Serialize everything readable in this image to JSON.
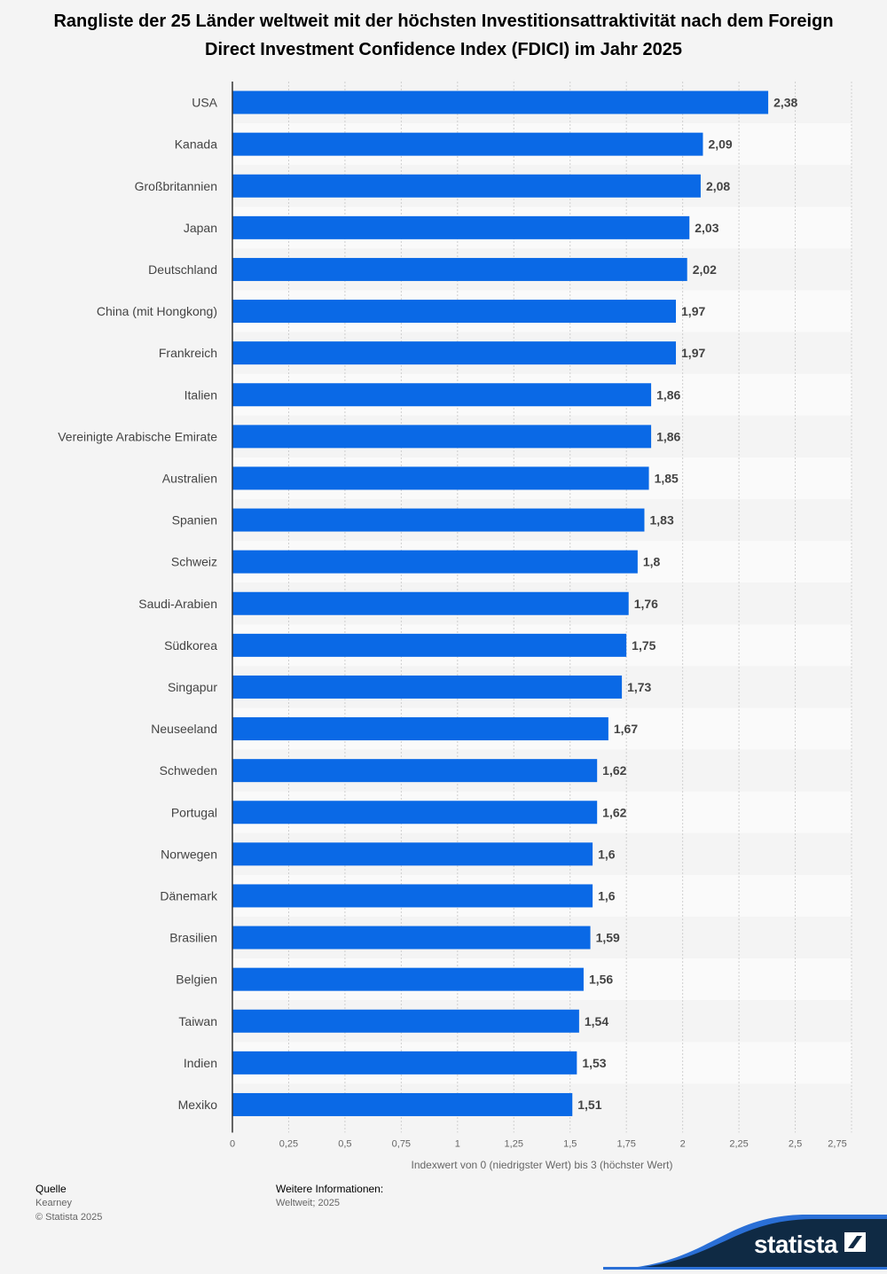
{
  "chart_data": {
    "type": "bar",
    "orientation": "horizontal",
    "title": "Rangliste der 25 Länder weltweit mit der höchsten Investitionsattraktivität nach dem Foreign Direct Investment Confidence Index (FDICI) im Jahr 2025",
    "categories": [
      "USA",
      "Kanada",
      "Großbritannien",
      "Japan",
      "Deutschland",
      "China (mit Hongkong)",
      "Frankreich",
      "Italien",
      "Vereinigte Arabische Emirate",
      "Australien",
      "Spanien",
      "Schweiz",
      "Saudi-Arabien",
      "Südkorea",
      "Singapur",
      "Neuseeland",
      "Schweden",
      "Portugal",
      "Norwegen",
      "Dänemark",
      "Brasilien",
      "Belgien",
      "Taiwan",
      "Indien",
      "Mexiko"
    ],
    "values": [
      2.38,
      2.09,
      2.08,
      2.03,
      2.02,
      1.97,
      1.97,
      1.86,
      1.86,
      1.85,
      1.83,
      1.8,
      1.76,
      1.75,
      1.73,
      1.67,
      1.62,
      1.62,
      1.6,
      1.6,
      1.59,
      1.56,
      1.54,
      1.53,
      1.51
    ],
    "value_labels": [
      "2,38",
      "2,09",
      "2,08",
      "2,03",
      "2,02",
      "1,97",
      "1,97",
      "1,86",
      "1,86",
      "1,85",
      "1,83",
      "1,8",
      "1,76",
      "1,75",
      "1,73",
      "1,67",
      "1,62",
      "1,62",
      "1,6",
      "1,6",
      "1,59",
      "1,56",
      "1,54",
      "1,53",
      "1,51"
    ],
    "xticks": [
      0,
      0.25,
      0.5,
      0.75,
      1,
      1.25,
      1.5,
      1.75,
      2,
      2.25,
      2.5,
      2.75
    ],
    "xtick_labels": [
      "0",
      "0,25",
      "0,5",
      "0,75",
      "1",
      "1,25",
      "1,5",
      "1,75",
      "2",
      "2,25",
      "2,5",
      "2,75"
    ],
    "xlim": [
      0,
      2.75
    ],
    "xlabel": "Indexwert von 0 (niedrigster Wert) bis 3 (höchster Wert)",
    "ylabel": "",
    "grid": true,
    "bar_color": "#0a69e6"
  },
  "footer": {
    "source_heading": "Quelle",
    "source": "Kearney",
    "copyright": "© Statista 2025",
    "info_heading": "Weitere Informationen:",
    "info": "Weltweit; 2025",
    "logo": "statista"
  }
}
